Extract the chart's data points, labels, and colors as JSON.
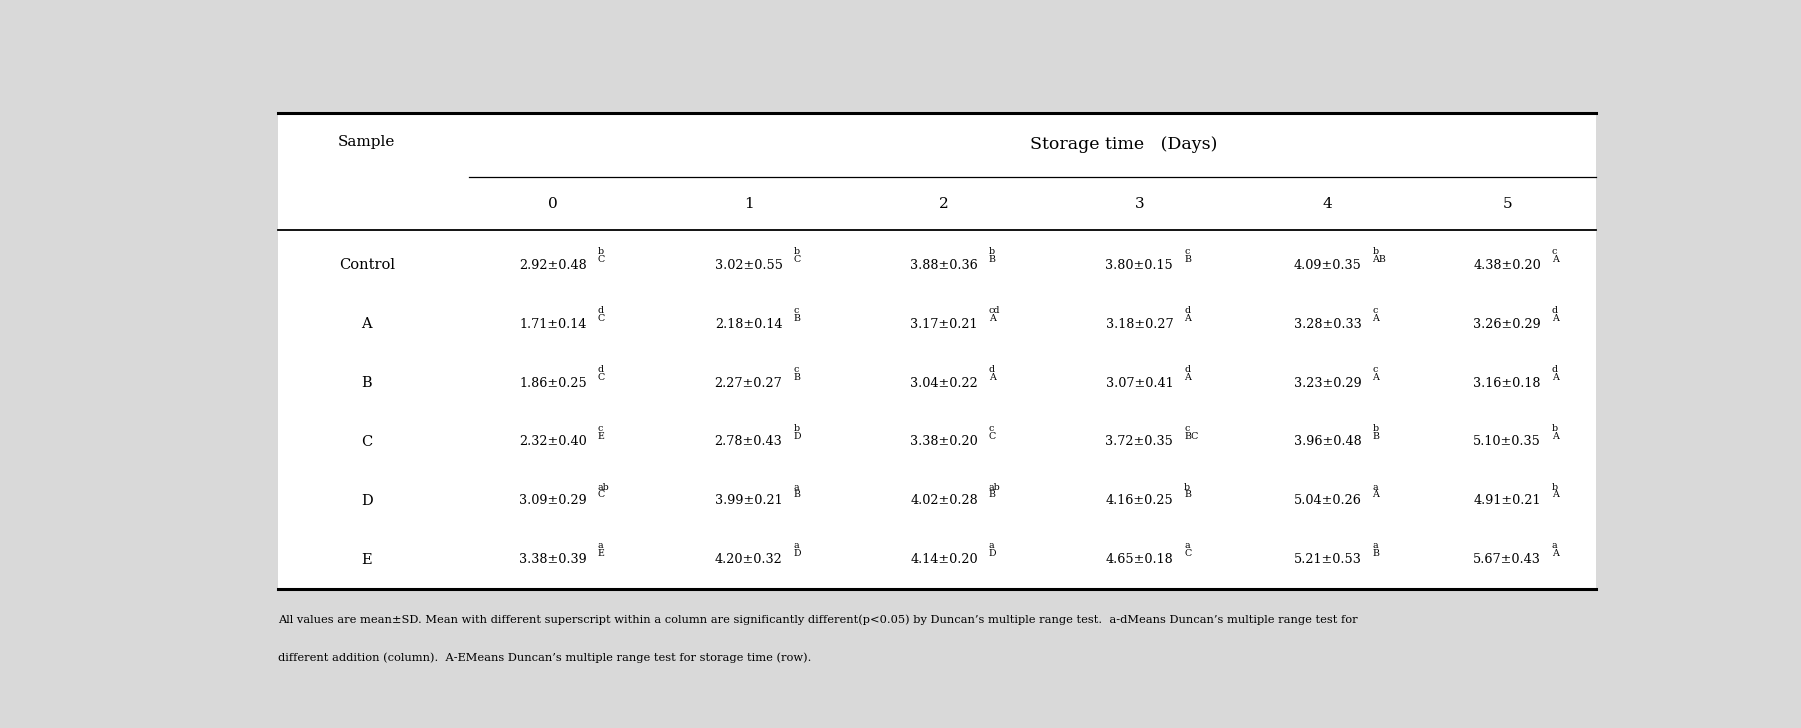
{
  "title": "Storage time   (Days)",
  "col_header": [
    "0",
    "1",
    "2",
    "3",
    "4",
    "5"
  ],
  "row_labels": [
    "Control",
    "A",
    "B",
    "C",
    "D",
    "E"
  ],
  "cells": {
    "Control": {
      "0": {
        "main": "2.92±0.48",
        "sup_lower": "b",
        "sup_upper": "C"
      },
      "1": {
        "main": "3.02±0.55",
        "sup_lower": "b",
        "sup_upper": "C"
      },
      "2": {
        "main": "3.88±0.36",
        "sup_lower": "b",
        "sup_upper": "B"
      },
      "3": {
        "main": "3.80±0.15",
        "sup_lower": "c",
        "sup_upper": "B"
      },
      "4": {
        "main": "4.09±0.35",
        "sup_lower": "b",
        "sup_upper": "AB"
      },
      "5": {
        "main": "4.38±0.20",
        "sup_lower": "c",
        "sup_upper": "A"
      }
    },
    "A": {
      "0": {
        "main": "1.71±0.14",
        "sup_lower": "d",
        "sup_upper": "C"
      },
      "1": {
        "main": "2.18±0.14",
        "sup_lower": "c",
        "sup_upper": "B"
      },
      "2": {
        "main": "3.17±0.21",
        "sup_lower": "cd",
        "sup_upper": "A"
      },
      "3": {
        "main": "3.18±0.27",
        "sup_lower": "d",
        "sup_upper": "A"
      },
      "4": {
        "main": "3.28±0.33",
        "sup_lower": "c",
        "sup_upper": "A"
      },
      "5": {
        "main": "3.26±0.29",
        "sup_lower": "d",
        "sup_upper": "A"
      }
    },
    "B": {
      "0": {
        "main": "1.86±0.25",
        "sup_lower": "d",
        "sup_upper": "C"
      },
      "1": {
        "main": "2.27±0.27",
        "sup_lower": "c",
        "sup_upper": "B"
      },
      "2": {
        "main": "3.04±0.22",
        "sup_lower": "d",
        "sup_upper": "A"
      },
      "3": {
        "main": "3.07±0.41",
        "sup_lower": "d",
        "sup_upper": "A"
      },
      "4": {
        "main": "3.23±0.29",
        "sup_lower": "c",
        "sup_upper": "A"
      },
      "5": {
        "main": "3.16±0.18",
        "sup_lower": "d",
        "sup_upper": "A"
      }
    },
    "C": {
      "0": {
        "main": "2.32±0.40",
        "sup_lower": "c",
        "sup_upper": "E"
      },
      "1": {
        "main": "2.78±0.43",
        "sup_lower": "b",
        "sup_upper": "D"
      },
      "2": {
        "main": "3.38±0.20",
        "sup_lower": "c",
        "sup_upper": "C"
      },
      "3": {
        "main": "3.72±0.35",
        "sup_lower": "c",
        "sup_upper": "BC"
      },
      "4": {
        "main": "3.96±0.48",
        "sup_lower": "b",
        "sup_upper": "B"
      },
      "5": {
        "main": "5.10±0.35",
        "sup_lower": "b",
        "sup_upper": "A"
      }
    },
    "D": {
      "0": {
        "main": "3.09±0.29",
        "sup_lower": "ab",
        "sup_upper": "C"
      },
      "1": {
        "main": "3.99±0.21",
        "sup_lower": "a",
        "sup_upper": "B"
      },
      "2": {
        "main": "4.02±0.28",
        "sup_lower": "ab",
        "sup_upper": "B"
      },
      "3": {
        "main": "4.16±0.25",
        "sup_lower": "b",
        "sup_upper": "B"
      },
      "4": {
        "main": "5.04±0.26",
        "sup_lower": "a",
        "sup_upper": "A"
      },
      "5": {
        "main": "4.91±0.21",
        "sup_lower": "b",
        "sup_upper": "A"
      }
    },
    "E": {
      "0": {
        "main": "3.38±0.39",
        "sup_lower": "a",
        "sup_upper": "E"
      },
      "1": {
        "main": "4.20±0.32",
        "sup_lower": "a",
        "sup_upper": "D"
      },
      "2": {
        "main": "4.14±0.20",
        "sup_lower": "a",
        "sup_upper": "D"
      },
      "3": {
        "main": "4.65±0.18",
        "sup_lower": "a",
        "sup_upper": "C"
      },
      "4": {
        "main": "5.21±0.53",
        "sup_lower": "a",
        "sup_upper": "B"
      },
      "5": {
        "main": "5.67±0.43",
        "sup_lower": "a",
        "sup_upper": "A"
      }
    }
  },
  "footnote_line1": "All values are mean±SD. Mean with different superscript within a column are significantly different(p<0.05) by Duncan’s multiple range test.  a-dMeans Duncan’s multiple range test for",
  "footnote_line2": "different addition (column).  A-EMeans Duncan’s multiple range test for storage time (row).",
  "bg_color": "#d9d9d9",
  "table_bg": "#ffffff"
}
